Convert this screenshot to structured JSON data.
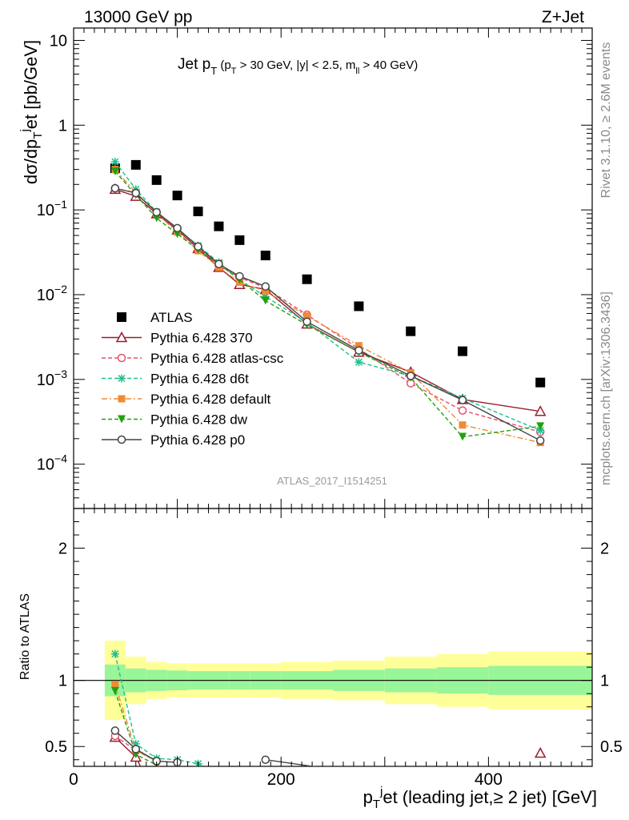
{
  "header": {
    "left": "13000 GeV pp",
    "right": "Z+Jet"
  },
  "side_text": {
    "rivet": "Rivet 3.1.10, ≥ 2.6M events",
    "mcplots": "mcplots.cern.ch [arXiv:1306.3436]"
  },
  "analysis_tag": "ATLAS_2017_I1514251",
  "chart_data": [
    {
      "type": "scatter",
      "panel": "main",
      "title": "Jet p_T (p_T > 30 GeV, |y| < 2.5, m_ll > 40 GeV)",
      "ylabel": "dσ/dp_T^j et [pb/GeV]",
      "yscale": "log",
      "xlim": [
        0,
        500
      ],
      "ylim": [
        3e-05,
        14
      ],
      "ytick_labels": [
        "10",
        "1",
        "10⁻¹",
        "10⁻²",
        "10⁻³",
        "10⁻⁴"
      ],
      "legend_position": "middle-left",
      "x": [
        40,
        60,
        80,
        100,
        120,
        140,
        160,
        185,
        225,
        275,
        325,
        375,
        450
      ],
      "series": [
        {
          "name": "ATLAS",
          "color": "#000000",
          "marker": "square",
          "line": "none",
          "values": [
            0.31,
            0.34,
            0.225,
            0.148,
            0.096,
            0.064,
            0.044,
            0.029,
            0.0152,
            0.0073,
            0.0037,
            0.00215,
            0.00092
          ]
        },
        {
          "name": "Pythia 6.428 370",
          "color": "#9b1c2e",
          "marker": "open-triangle",
          "line": "solid",
          "values": [
            0.175,
            0.145,
            0.09,
            0.058,
            0.035,
            0.021,
            0.0132,
            0.0115,
            0.0045,
            0.0021,
            0.00122,
            0.00058,
            0.00042
          ]
        },
        {
          "name": "Pythia 6.428 atlas-csc",
          "color": "#e8506a",
          "marker": "open-circle",
          "line": "dashed",
          "values": [
            0.18,
            0.16,
            0.093,
            0.06,
            0.036,
            0.022,
            0.016,
            0.012,
            0.0058,
            0.0023,
            0.0009,
            0.00043,
            0.00024
          ]
        },
        {
          "name": "Pythia 6.428 d6t",
          "color": "#1fbf8f",
          "marker": "asterisk",
          "line": "dashed",
          "values": [
            0.37,
            0.175,
            0.095,
            0.06,
            0.038,
            0.024,
            0.015,
            0.0095,
            0.0047,
            0.0016,
            0.0011,
            0.0006,
            0.00025
          ]
        },
        {
          "name": "Pythia 6.428 default",
          "color": "#f08a35",
          "marker": "filled-square",
          "line": "dashdot",
          "values": [
            0.3,
            0.16,
            0.09,
            0.055,
            0.033,
            0.021,
            0.014,
            0.011,
            0.0056,
            0.0025,
            0.0012,
            0.00029,
            0.00018
          ]
        },
        {
          "name": "Pythia 6.428 dw",
          "color": "#22a10e",
          "marker": "filled-triangle-down",
          "line": "dashed",
          "values": [
            0.285,
            0.15,
            0.08,
            0.052,
            0.034,
            0.023,
            0.015,
            0.0085,
            0.0044,
            0.0021,
            0.00105,
            0.00021,
            0.00028
          ]
        },
        {
          "name": "Pythia 6.428 p0",
          "color": "#444444",
          "marker": "open-circle",
          "line": "solid",
          "values": [
            0.18,
            0.158,
            0.094,
            0.061,
            0.037,
            0.023,
            0.0165,
            0.0125,
            0.0048,
            0.0022,
            0.0011,
            0.00057,
            0.00019
          ]
        }
      ]
    },
    {
      "type": "line",
      "panel": "ratio",
      "ylabel": "Ratio to ATLAS",
      "xlabel": "p_T^j et (leading jet,≥ 2 jet) [GeV]",
      "xlim": [
        0,
        500
      ],
      "ylim": [
        0.35,
        2.3
      ],
      "x_ticks": [
        0,
        200,
        400
      ],
      "y_ticks": [
        0.5,
        1,
        2
      ],
      "bin_edges": [
        30,
        50,
        70,
        90,
        110,
        130,
        150,
        170,
        200,
        250,
        300,
        350,
        400,
        500
      ],
      "band_inner": [
        0.12,
        0.09,
        0.08,
        0.075,
        0.07,
        0.07,
        0.07,
        0.07,
        0.07,
        0.08,
        0.09,
        0.1,
        0.11
      ],
      "band_outer": [
        0.3,
        0.18,
        0.14,
        0.13,
        0.13,
        0.13,
        0.13,
        0.13,
        0.14,
        0.15,
        0.18,
        0.2,
        0.22
      ],
      "x": [
        40,
        60,
        80,
        100,
        120,
        185,
        450
      ],
      "series": [
        {
          "name": "Pythia 6.428 370",
          "color": "#9b1c2e",
          "marker": "open-triangle",
          "values": [
            0.57,
            0.42,
            null,
            null,
            null,
            null,
            0.45
          ]
        },
        {
          "name": "Pythia 6.428 atlas-csc",
          "color": "#e8506a",
          "marker": "open-circle",
          "values": [
            0.58,
            0.47,
            0.39,
            null,
            null,
            null,
            null
          ]
        },
        {
          "name": "Pythia 6.428 d6t",
          "color": "#1fbf8f",
          "marker": "asterisk",
          "values": [
            1.2,
            0.52,
            0.41,
            0.4,
            0.37,
            null,
            null
          ]
        },
        {
          "name": "Pythia 6.428 default",
          "color": "#f08a35",
          "marker": "filled-square",
          "values": [
            0.97,
            0.47,
            0.39,
            null,
            null,
            null,
            null
          ]
        },
        {
          "name": "Pythia 6.428 dw",
          "color": "#22a10e",
          "marker": "filled-triangle-down",
          "values": [
            0.92,
            0.44,
            0.36,
            null,
            null,
            null,
            null
          ]
        },
        {
          "name": "Pythia 6.428 p0",
          "color": "#444444",
          "marker": "open-circle",
          "values": [
            0.62,
            0.48,
            0.39,
            0.38,
            null,
            0.4,
            null
          ]
        }
      ]
    }
  ]
}
